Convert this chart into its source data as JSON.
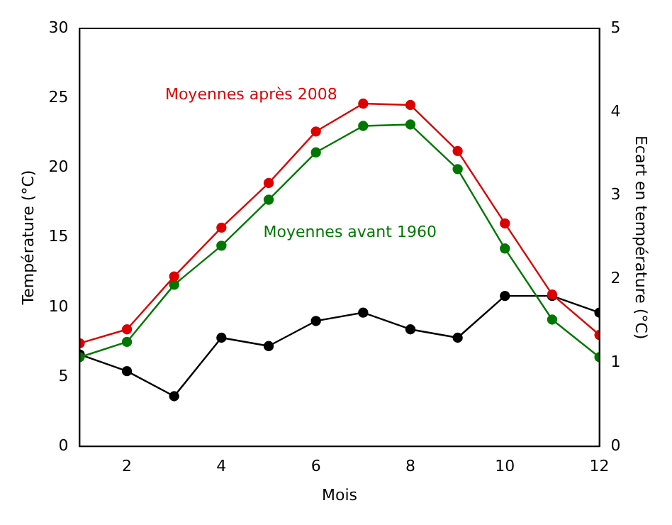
{
  "chart_data": {
    "type": "line",
    "xlabel": "Mois",
    "ylabel": "Température (°C)",
    "y2label": "Ecart en température (°C)",
    "x": [
      1,
      2,
      3,
      4,
      5,
      6,
      7,
      8,
      9,
      10,
      11,
      12
    ],
    "series": [
      {
        "name": "Moyennes après 2008",
        "color": "#dd0000",
        "values": [
          7.4,
          8.4,
          12.2,
          15.7,
          18.9,
          22.6,
          24.6,
          24.5,
          21.2,
          16.0,
          10.9,
          8.0
        ]
      },
      {
        "name": "Moyennes avant 1960",
        "color": "#007700",
        "values": [
          6.4,
          7.5,
          11.6,
          14.4,
          17.7,
          21.1,
          23.0,
          23.1,
          19.9,
          14.2,
          9.1,
          6.4
        ]
      },
      {
        "color": "#000000",
        "axis": "y2",
        "values": [
          1.1,
          0.9,
          0.6,
          1.3,
          1.2,
          1.5,
          1.6,
          1.4,
          1.3,
          1.8,
          1.8,
          1.6
        ]
      }
    ],
    "xlim": [
      1,
      12
    ],
    "xticks": [
      2,
      4,
      6,
      8,
      10,
      12
    ],
    "ylim": [
      0,
      30
    ],
    "yticks": [
      0,
      5,
      10,
      15,
      20,
      25,
      30
    ],
    "y2lim": [
      0,
      5
    ],
    "y2ticks": [
      0,
      1,
      2,
      3,
      4,
      5
    ],
    "grid": false,
    "legend": false,
    "marker": "circle",
    "line_style": "solid"
  }
}
